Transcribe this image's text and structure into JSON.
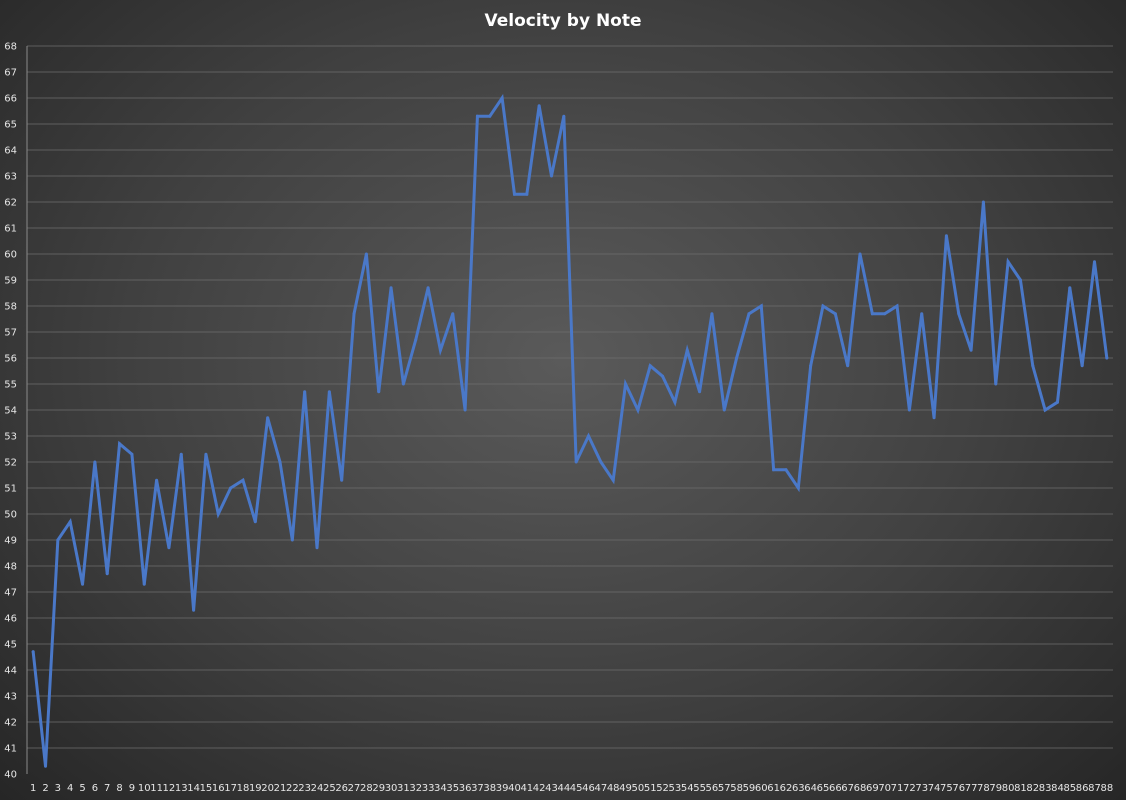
{
  "chart_data": {
    "type": "line",
    "title": "Velocity by Note",
    "xlabel": "",
    "ylabel": "",
    "ylim": [
      40,
      68
    ],
    "ytick_step": 1,
    "grid": true,
    "legend": "none",
    "series_color": "#4a78c8",
    "x": [
      1,
      2,
      3,
      4,
      5,
      6,
      7,
      8,
      9,
      10,
      11,
      12,
      13,
      14,
      15,
      16,
      17,
      18,
      19,
      20,
      21,
      22,
      23,
      24,
      25,
      26,
      27,
      28,
      29,
      30,
      31,
      32,
      33,
      34,
      35,
      36,
      37,
      38,
      39,
      40,
      41,
      42,
      43,
      44,
      45,
      46,
      47,
      48,
      49,
      50,
      51,
      52,
      53,
      54,
      55,
      56,
      57,
      58,
      59,
      60,
      61,
      62,
      63,
      64,
      65,
      66,
      67,
      68,
      69,
      70,
      71,
      72,
      73,
      74,
      75,
      76,
      77,
      78,
      79,
      80,
      81,
      82,
      83,
      84,
      85,
      86,
      87,
      88
    ],
    "series": [
      {
        "values": [
          44.7,
          40.3,
          49.0,
          49.7,
          47.3,
          52.0,
          47.7,
          52.7,
          52.3,
          47.3,
          51.3,
          48.7,
          52.3,
          46.3,
          52.3,
          50.0,
          51.0,
          51.3,
          49.7,
          53.7,
          52.0,
          49.0,
          54.7,
          48.7,
          54.7,
          51.3,
          57.7,
          60.0,
          54.7,
          58.7,
          55.0,
          56.7,
          58.7,
          56.3,
          57.7,
          54.0,
          65.3,
          65.3,
          66.0,
          62.3,
          62.3,
          65.7,
          63.0,
          65.3,
          52.0,
          53.0,
          52.0,
          51.3,
          55.0,
          54.0,
          55.7,
          55.3,
          54.3,
          56.3,
          54.7,
          57.7,
          54.0,
          56.0,
          57.7,
          58.0,
          51.7,
          51.7,
          51.0,
          55.7,
          58.0,
          57.7,
          55.7,
          60.0,
          57.7,
          57.7,
          58.0,
          54.0,
          57.7,
          53.7,
          60.7,
          57.7,
          56.3,
          62.0,
          55.0,
          59.7,
          59.0,
          55.7,
          54.0,
          54.3,
          58.7,
          55.7,
          59.7,
          56.0
        ]
      }
    ]
  }
}
